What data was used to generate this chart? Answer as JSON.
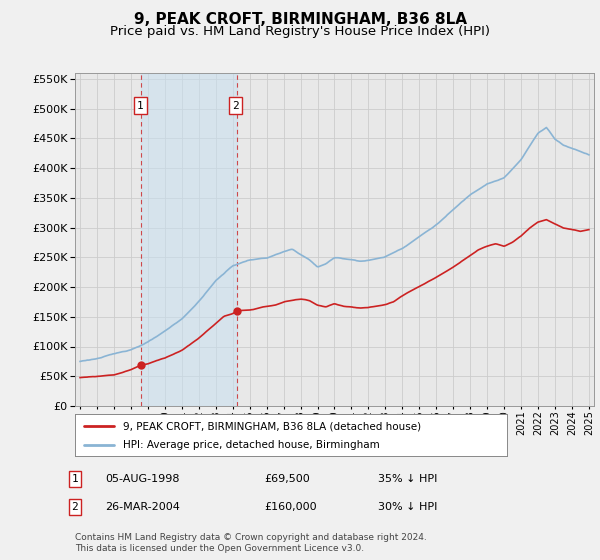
{
  "title": "9, PEAK CROFT, BIRMINGHAM, B36 8LA",
  "subtitle": "Price paid vs. HM Land Registry's House Price Index (HPI)",
  "legend_line1": "9, PEAK CROFT, BIRMINGHAM, B36 8LA (detached house)",
  "legend_line2": "HPI: Average price, detached house, Birmingham",
  "footnote": "Contains HM Land Registry data © Crown copyright and database right 2024.\nThis data is licensed under the Open Government Licence v3.0.",
  "purchase1_date": "05-AUG-1998",
  "purchase1_price": "£69,500",
  "purchase1_note": "35% ↓ HPI",
  "purchase2_date": "26-MAR-2004",
  "purchase2_price": "£160,000",
  "purchase2_note": "30% ↓ HPI",
  "hpi_color": "#8ab4d4",
  "price_color": "#cc2222",
  "purchase1_x": 1998.59,
  "purchase1_y": 69500,
  "purchase2_x": 2004.23,
  "purchase2_y": 160000,
  "vline1_x": 1998.59,
  "vline2_x": 2004.23,
  "ylim": [
    0,
    560000
  ],
  "xlim_start": 1994.7,
  "xlim_end": 2025.3,
  "fig_bg": "#f0f0f0",
  "plot_bg": "#e8e8e8",
  "grid_color": "#cccccc",
  "title_fontsize": 11,
  "subtitle_fontsize": 9.5
}
